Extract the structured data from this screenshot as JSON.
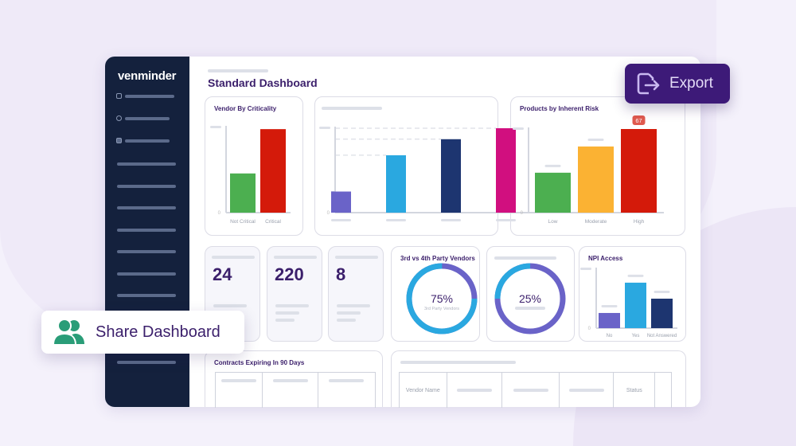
{
  "brand": {
    "logo": "venminder"
  },
  "header": {
    "title": "Standard Dashboard"
  },
  "actions": {
    "export_label": "Export",
    "export_icon": "file-export-icon",
    "share_label": "Share Dashboard",
    "share_icon": "users-icon"
  },
  "colors": {
    "sidebar": "#14213d",
    "accent": "#3d1a78",
    "title": "#3b1f6b",
    "share_icon": "#2a9d78"
  },
  "stats": [
    {
      "value": "24"
    },
    {
      "value": "220"
    },
    {
      "value": "8"
    }
  ],
  "donuts": [
    {
      "title": "3rd vs 4th Party Vendors",
      "percent": 75,
      "label": "75%",
      "sublabel": "3rd Party Vendors"
    },
    {
      "percent": 25,
      "label": "25%"
    }
  ],
  "contracts": {
    "title": "Contracts Expiring In 90 Days"
  },
  "vendor_table": {
    "columns": [
      "Vendor Name",
      "",
      "",
      "",
      "Status",
      ""
    ]
  },
  "chart_data": [
    {
      "type": "bar",
      "title": "Vendor By Criticality",
      "categories": [
        "Not Critical",
        "Critical"
      ],
      "values": [
        46,
        98
      ],
      "colors": [
        "#4caf50",
        "#d41a0a"
      ],
      "ylim": [
        0,
        100
      ],
      "yticks": [
        "0"
      ]
    },
    {
      "type": "bar",
      "title": "",
      "categories": [
        "",
        "",
        "",
        ""
      ],
      "values": [
        25,
        68,
        87,
        100
      ],
      "colors": [
        "#6a63c8",
        "#2aa8e0",
        "#1d3570",
        "#d10f7f"
      ],
      "ylim": [
        0,
        100
      ],
      "yticks": [
        "0"
      ],
      "grid": "dashed"
    },
    {
      "type": "bar",
      "title": "Products by Inherent Risk",
      "categories": [
        "Low",
        "Moderate",
        "High"
      ],
      "values": [
        32,
        53,
        67
      ],
      "colors": [
        "#4caf50",
        "#fbb233",
        "#d41a0a"
      ],
      "ylim": [
        0,
        67
      ],
      "yticks": [
        "0"
      ],
      "data_label": {
        "index": 2,
        "text": "67"
      }
    },
    {
      "type": "bar",
      "title": "NPI Access",
      "categories": [
        "No",
        "Yes",
        "Not Answered"
      ],
      "values": [
        18,
        54,
        35
      ],
      "colors": [
        "#6a63c8",
        "#2aa8e0",
        "#1d3570"
      ],
      "ylim": [
        0,
        70
      ],
      "yticks": [
        "0"
      ]
    }
  ]
}
